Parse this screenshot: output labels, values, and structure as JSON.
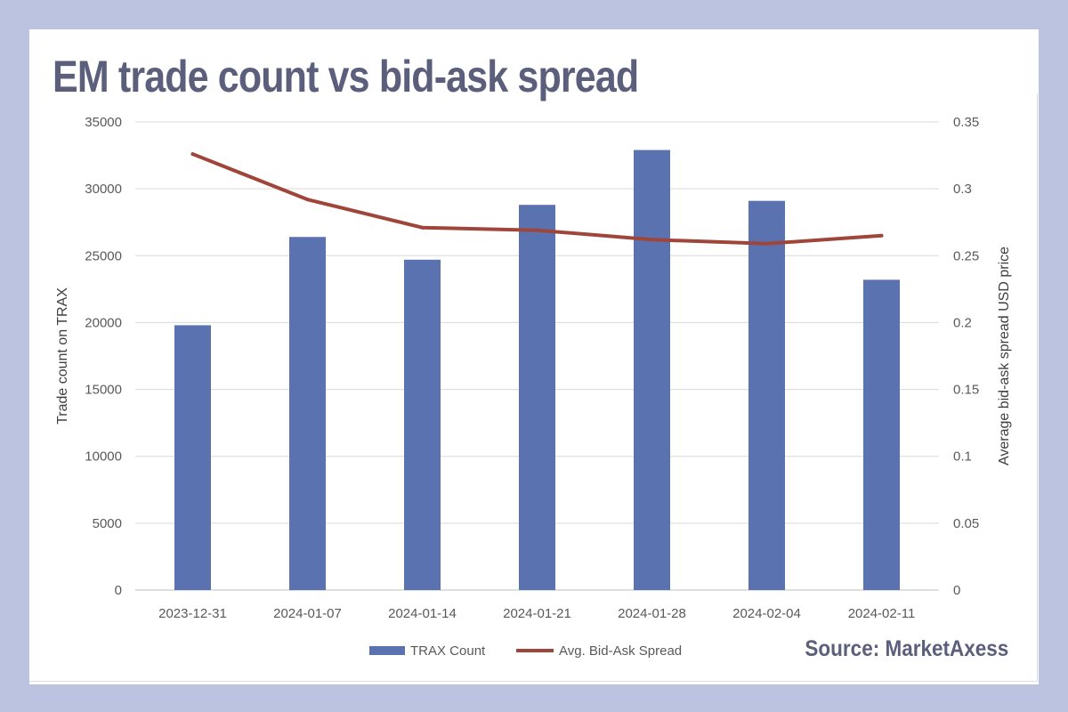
{
  "header": {
    "title": "EM trade count vs bid-ask spread",
    "source": "Source: MarketAxess"
  },
  "chart_data": {
    "type": "bar",
    "categories": [
      "2023-12-31",
      "2024-01-07",
      "2024-01-14",
      "2024-01-21",
      "2024-01-28",
      "2024-02-04",
      "2024-02-11"
    ],
    "series": [
      {
        "name": "TRAX Count",
        "type": "bar",
        "axis": "left",
        "color": "#5b72b0",
        "values": [
          19800,
          26400,
          24700,
          28800,
          32900,
          29100,
          23200
        ]
      },
      {
        "name": "Avg. Bid-Ask Spread",
        "type": "line",
        "axis": "right",
        "color": "#a0453a",
        "values": [
          0.326,
          0.292,
          0.271,
          0.269,
          0.262,
          0.259,
          0.265
        ]
      }
    ],
    "ylabel": "Trade count on TRAX",
    "ylabel_right": "Average bid-ask spread USD price",
    "ylim": [
      0,
      35000
    ],
    "yticks": [
      "0",
      "5000",
      "10000",
      "15000",
      "20000",
      "25000",
      "30000",
      "35000"
    ],
    "ylim_right": [
      0,
      0.35
    ],
    "yticks_right": [
      "0",
      "0.05",
      "0.1",
      "0.15",
      "0.2",
      "0.25",
      "0.3",
      "0.35"
    ],
    "grid": true,
    "legend_position": "bottom"
  }
}
